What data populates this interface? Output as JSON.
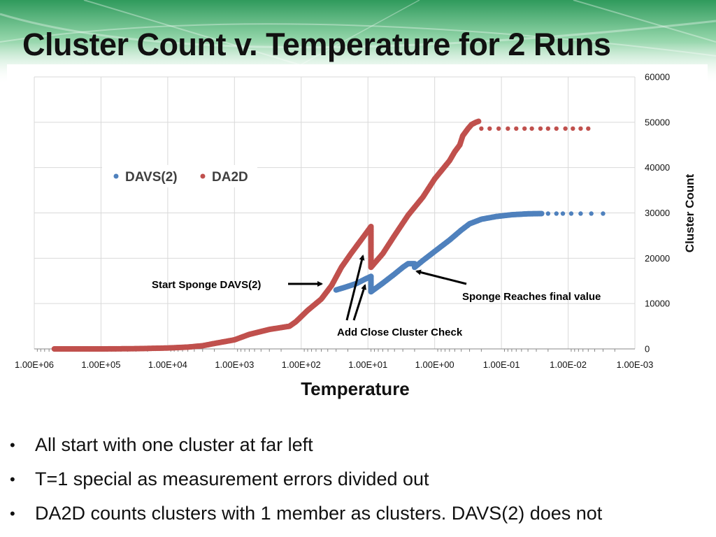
{
  "slide": {
    "title": "Cluster Count v. Temperature for 2 Runs",
    "bullets": [
      "All start with one cluster at far left",
      "T=1 special as measurement errors divided out",
      "DA2D counts clusters with 1 member as clusters. DAVS(2) does not"
    ],
    "colors": {
      "header_green": "#2f9a5c",
      "davs": "#4f81bd",
      "da2d": "#c0504d",
      "grid": "#d9d9d9"
    }
  },
  "chart_data": {
    "type": "scatter",
    "title": "",
    "xlabel": "Temperature",
    "ylabel": "Cluster Count",
    "x_scale": "log",
    "x_reversed": true,
    "xlim": [
      1000000,
      0.001
    ],
    "ylim": [
      0,
      60000
    ],
    "x_ticks": [
      "1.00E+06",
      "1.00E+05",
      "1.00E+04",
      "1.00E+03",
      "1.00E+02",
      "1.00E+01",
      "1.00E+00",
      "1.00E-01",
      "1.00E-02",
      "1.00E-03"
    ],
    "y_ticks": [
      "0",
      "10000",
      "20000",
      "30000",
      "40000",
      "50000",
      "60000"
    ],
    "y_axis_side": "right",
    "grid": true,
    "legend_position": "upper-left",
    "annotations": [
      {
        "text": "Start Sponge DAVS(2)"
      },
      {
        "text": "Add Close Cluster Check"
      },
      {
        "text": "Sponge Reaches final value"
      }
    ],
    "series": [
      {
        "name": "DAVS(2)",
        "color": "#4f81bd",
        "dense": [
          [
            30,
            13000
          ],
          [
            22,
            13600
          ],
          [
            15,
            14400
          ],
          [
            11,
            15400
          ],
          [
            9,
            16000
          ],
          [
            9,
            12600
          ],
          [
            6,
            14500
          ],
          [
            4,
            16500
          ],
          [
            3,
            18000
          ],
          [
            2.5,
            18800
          ],
          [
            2,
            18800
          ],
          [
            2,
            18000
          ],
          [
            1.5,
            19500
          ],
          [
            1,
            21500
          ],
          [
            0.6,
            24000
          ],
          [
            0.4,
            26200
          ],
          [
            0.3,
            27600
          ],
          [
            0.2,
            28600
          ],
          [
            0.12,
            29200
          ],
          [
            0.07,
            29600
          ],
          [
            0.04,
            29800
          ],
          [
            0.025,
            29850
          ]
        ],
        "sparse": [
          [
            0.02,
            29850
          ],
          [
            0.015,
            29850
          ],
          [
            0.012,
            29850
          ],
          [
            0.009,
            29850
          ],
          [
            0.0065,
            29850
          ],
          [
            0.0045,
            29850
          ],
          [
            0.003,
            29850
          ]
        ]
      },
      {
        "name": "DA2D",
        "color": "#c0504d",
        "dense": [
          [
            500000,
            0
          ],
          [
            100000,
            0
          ],
          [
            30000,
            50
          ],
          [
            10000,
            200
          ],
          [
            5000,
            400
          ],
          [
            3000,
            700
          ],
          [
            2000,
            1200
          ],
          [
            1000,
            2000
          ],
          [
            600,
            3200
          ],
          [
            300,
            4300
          ],
          [
            150,
            5000
          ],
          [
            120,
            6000
          ],
          [
            80,
            8500
          ],
          [
            50,
            11000
          ],
          [
            35,
            14000
          ],
          [
            25,
            18000
          ],
          [
            18,
            21000
          ],
          [
            12,
            24500
          ],
          [
            9,
            27000
          ],
          [
            9,
            18000
          ],
          [
            6,
            21000
          ],
          [
            4,
            25000
          ],
          [
            2.5,
            29500
          ],
          [
            1.5,
            33500
          ],
          [
            1,
            37500
          ],
          [
            0.6,
            41500
          ],
          [
            0.5,
            43500
          ],
          [
            0.42,
            45000
          ],
          [
            0.38,
            47000
          ],
          [
            0.32,
            48500
          ],
          [
            0.28,
            49500
          ],
          [
            0.24,
            50000
          ],
          [
            0.22,
            50200
          ]
        ],
        "sparse": [
          [
            0.2,
            48600
          ],
          [
            0.15,
            48600
          ],
          [
            0.11,
            48600
          ],
          [
            0.08,
            48600
          ],
          [
            0.06,
            48600
          ],
          [
            0.045,
            48600
          ],
          [
            0.035,
            48600
          ],
          [
            0.026,
            48600
          ],
          [
            0.02,
            48600
          ],
          [
            0.015,
            48600
          ],
          [
            0.011,
            48600
          ],
          [
            0.0085,
            48600
          ],
          [
            0.0065,
            48600
          ],
          [
            0.005,
            48600
          ]
        ]
      }
    ]
  }
}
